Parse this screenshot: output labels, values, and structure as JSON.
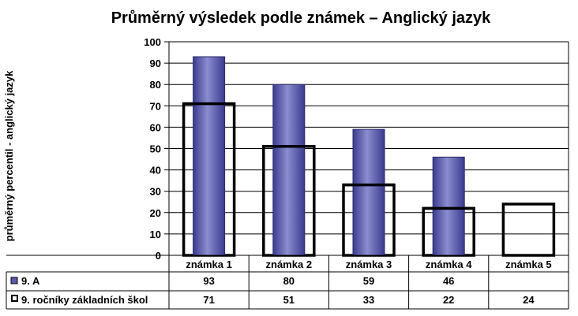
{
  "chart_data": {
    "type": "bar",
    "title": "Průměrný výsledek podle známek – Anglický jazyk",
    "ylabel": "průměrný percentil - anglický jazyk",
    "xlabel": "",
    "ylim": [
      0,
      100
    ],
    "yticks": [
      0,
      10,
      20,
      30,
      40,
      50,
      60,
      70,
      80,
      90,
      100
    ],
    "grid": true,
    "legend_position": "data-table-below",
    "categories": [
      "známka 1",
      "známka 2",
      "známka 3",
      "známka 4",
      "známka 5"
    ],
    "series": [
      {
        "name": "9. A",
        "values": [
          93,
          80,
          59,
          46,
          null
        ],
        "style": "filled-bar",
        "color": "#5a5aa8"
      },
      {
        "name": "9. ročníky základních škol",
        "values": [
          71,
          51,
          33,
          22,
          24
        ],
        "style": "outline-bar",
        "color": "#000000"
      }
    ]
  }
}
